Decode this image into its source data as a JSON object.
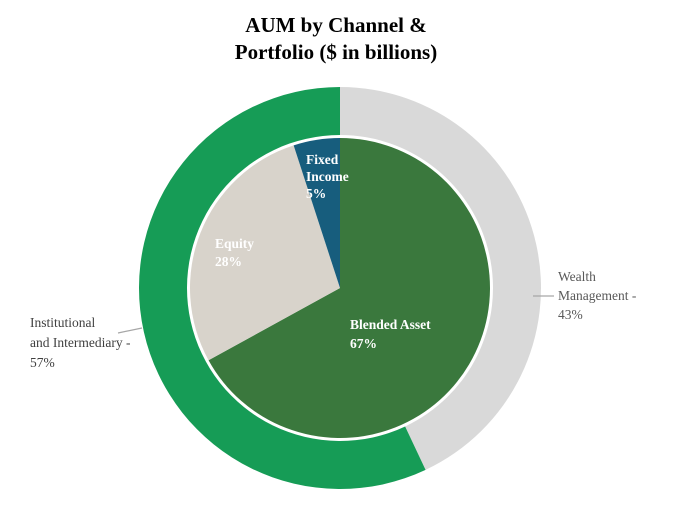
{
  "title": {
    "lines": [
      "AUM by Channel &",
      "Portfolio ($ in billions)"
    ]
  },
  "chart_data": {
    "type": "pie",
    "subtype": "donut-with-inner-pie",
    "title": "AUM by Channel & Portfolio ($ in billions)",
    "start_angle_deg": 0,
    "direction": "clockwise",
    "legend_position": "callout-labels",
    "outer_ring": {
      "name": "Channel",
      "slices": [
        {
          "label": "Wealth Management",
          "value": 43,
          "color": "#d9d9d9"
        },
        {
          "label": "Institutional and Intermediary",
          "value": 57,
          "color": "#169c56"
        }
      ]
    },
    "inner_pie": {
      "name": "Portfolio",
      "slices": [
        {
          "label": "Blended Asset",
          "value": 67,
          "color": "#3a783d"
        },
        {
          "label": "Equity",
          "value": 28,
          "color": "#d8d3cb"
        },
        {
          "label": "Fixed Income",
          "value": 5,
          "color": "#175d7d"
        }
      ]
    }
  },
  "slice_labels": {
    "fixed_income": {
      "lines": [
        "Fixed",
        "Income",
        "5%"
      ]
    },
    "equity": {
      "lines": [
        "Equity",
        "28%"
      ]
    },
    "blended_asset": {
      "lines": [
        "Blended Asset",
        "67%"
      ]
    }
  },
  "callouts": {
    "wealth_management": {
      "lines": [
        "Wealth",
        "Management -",
        "43%"
      ]
    },
    "institutional": {
      "lines": [
        "Institutional",
        "and Intermediary -",
        "57%"
      ]
    }
  }
}
